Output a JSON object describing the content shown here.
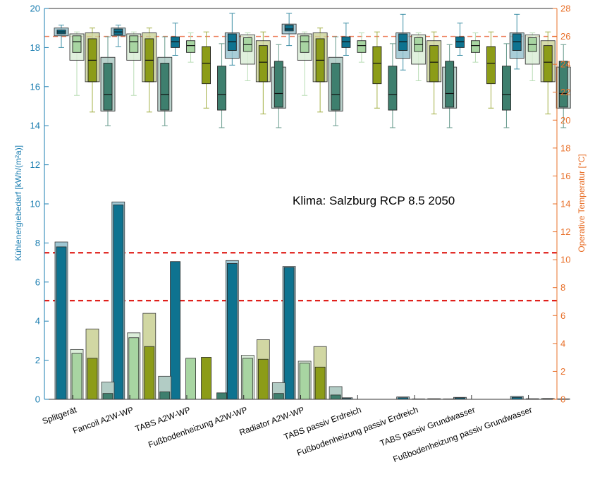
{
  "chart_data": {
    "type": "bar",
    "categories": [
      "Splitgerät",
      "Fancoil A2W-WP",
      "TABS A2W-WP",
      "Fußbodenheizung A2W-WP",
      "Radiator A2W-WP",
      "TABS passiv Erdreich",
      "Fußbodenheizung passiv Erdreich",
      "TABS passiv Grundwasser",
      "Fußbodenheizung passiv Grundwasser"
    ],
    "ylabel": "Kühlenergiebedarf [kWh/(m²a)]",
    "ylabel_right": "Operative Temperatur [°C]",
    "ylim": [
      0,
      20
    ],
    "ylim_right": [
      0,
      28
    ],
    "yticks": [
      0,
      2,
      4,
      6,
      8,
      10,
      12,
      14,
      16,
      18,
      20
    ],
    "yticks_right": [
      0,
      2,
      4,
      6,
      8,
      10,
      12,
      14,
      16,
      18,
      20,
      22,
      24,
      26,
      28
    ],
    "annotation": "Klima: Salzburg RCP 8.5 2050",
    "reference_lines_left": [
      7.5,
      5.05
    ],
    "reference_line_right": 26,
    "colors": [
      "#0e7390",
      "#a8d5a2",
      "#8c9c18",
      "#3e7f6e"
    ],
    "bar_series": [
      {
        "outer": [
          8.05,
          10.1,
          0,
          7.1,
          6.8,
          0.08,
          0.12,
          0.1,
          0.15
        ],
        "inner": [
          7.8,
          9.95,
          7.05,
          6.95,
          6.75,
          0.05,
          0.08,
          0.07,
          0.1
        ]
      },
      {
        "outer": [
          2.55,
          3.4,
          0,
          2.25,
          1.95,
          0,
          0.02,
          0,
          0.03
        ],
        "inner": [
          2.35,
          3.15,
          2.1,
          2.1,
          1.85,
          0,
          0.01,
          0,
          0.02
        ]
      },
      {
        "outer": [
          3.6,
          4.4,
          0,
          3.05,
          2.7,
          0,
          0.03,
          0,
          0.04
        ],
        "inner": [
          2.1,
          2.7,
          2.15,
          2.05,
          1.65,
          0,
          0.02,
          0,
          0.03
        ]
      },
      {
        "outer": [
          0.88,
          1.18,
          0,
          0.85,
          0.65,
          0,
          0.02,
          0,
          0.02
        ],
        "inner": [
          0.3,
          0.38,
          0.33,
          0.3,
          0.22,
          0,
          0.01,
          0,
          0.01
        ]
      }
    ],
    "box_series": [
      {
        "min": [
          18.0,
          18.05,
          17.6,
          17.1,
          18.1,
          17.6,
          16.85,
          17.6,
          16.9
        ],
        "q1": [
          18.7,
          18.65,
          18.0,
          17.85,
          18.85,
          18.0,
          17.85,
          18.0,
          17.85
        ],
        "med": [
          18.8,
          18.8,
          18.3,
          18.3,
          18.95,
          18.3,
          18.3,
          18.3,
          18.3
        ],
        "q3": [
          18.9,
          18.95,
          18.55,
          18.7,
          19.15,
          18.55,
          18.7,
          18.55,
          18.7
        ],
        "max": [
          19.15,
          19.15,
          19.25,
          19.75,
          19.75,
          19.25,
          19.7,
          19.25,
          19.7
        ],
        "outer_q1": [
          18.6,
          18.6,
          null,
          17.45,
          18.7,
          null,
          17.45,
          null,
          17.45
        ],
        "outer_q3": [
          19.0,
          19.0,
          null,
          18.75,
          19.2,
          null,
          18.75,
          null,
          18.75
        ]
      },
      {
        "min": [
          15.55,
          15.55,
          17.25,
          16.3,
          15.55,
          17.25,
          16.3,
          17.25,
          16.3
        ],
        "q1": [
          17.75,
          17.75,
          17.75,
          17.8,
          17.75,
          17.75,
          17.8,
          17.75,
          17.8
        ],
        "med": [
          18.3,
          18.3,
          18.1,
          18.15,
          18.3,
          18.1,
          18.15,
          18.1,
          18.15
        ],
        "q3": [
          18.6,
          18.6,
          18.35,
          18.5,
          18.6,
          18.35,
          18.5,
          18.35,
          18.5
        ],
        "max": [
          18.8,
          18.8,
          18.75,
          18.75,
          18.8,
          18.75,
          18.75,
          18.75,
          18.75
        ],
        "outer_q1": [
          17.35,
          17.35,
          null,
          17.15,
          17.35,
          null,
          17.15,
          null,
          17.15
        ],
        "outer_q3": [
          18.7,
          18.7,
          null,
          18.65,
          18.7,
          null,
          18.65,
          null,
          18.65
        ]
      },
      {
        "min": [
          14.7,
          14.7,
          14.9,
          14.6,
          14.7,
          14.9,
          14.6,
          14.9,
          14.6
        ],
        "q1": [
          16.25,
          16.25,
          16.15,
          16.25,
          16.25,
          16.15,
          16.25,
          16.15,
          16.25
        ],
        "med": [
          17.35,
          17.35,
          17.2,
          17.25,
          17.35,
          17.2,
          17.25,
          17.2,
          17.25
        ],
        "q3": [
          18.45,
          18.45,
          18.05,
          18.1,
          18.45,
          18.05,
          18.1,
          18.05,
          18.1
        ],
        "max": [
          19.0,
          19.0,
          18.8,
          18.8,
          19.0,
          18.8,
          18.8,
          18.8,
          18.8
        ],
        "outer_q1": [
          16.25,
          16.25,
          null,
          16.25,
          16.25,
          null,
          16.25,
          null,
          16.25
        ],
        "outer_q3": [
          18.75,
          18.75,
          null,
          18.35,
          18.75,
          null,
          18.35,
          null,
          18.35
        ]
      },
      {
        "min": [
          14.0,
          14.0,
          13.9,
          13.9,
          14.0,
          13.9,
          13.9,
          13.9,
          13.9
        ],
        "q1": [
          14.8,
          14.8,
          14.8,
          14.95,
          14.8,
          14.8,
          14.95,
          14.8,
          14.95
        ],
        "med": [
          15.6,
          15.6,
          15.6,
          15.65,
          15.6,
          15.6,
          15.65,
          15.6,
          15.65
        ],
        "q3": [
          17.2,
          17.2,
          17.05,
          17.3,
          17.2,
          17.05,
          17.3,
          17.05,
          17.3
        ],
        "max": [
          18.55,
          18.55,
          18.2,
          18.15,
          18.55,
          18.2,
          18.15,
          18.2,
          18.15
        ],
        "outer_q1": [
          14.75,
          14.75,
          null,
          14.9,
          14.75,
          null,
          14.9,
          null,
          14.9
        ],
        "outer_q3": [
          17.5,
          17.5,
          null,
          17.0,
          17.5,
          null,
          17.0,
          null,
          17.0
        ]
      }
    ]
  }
}
